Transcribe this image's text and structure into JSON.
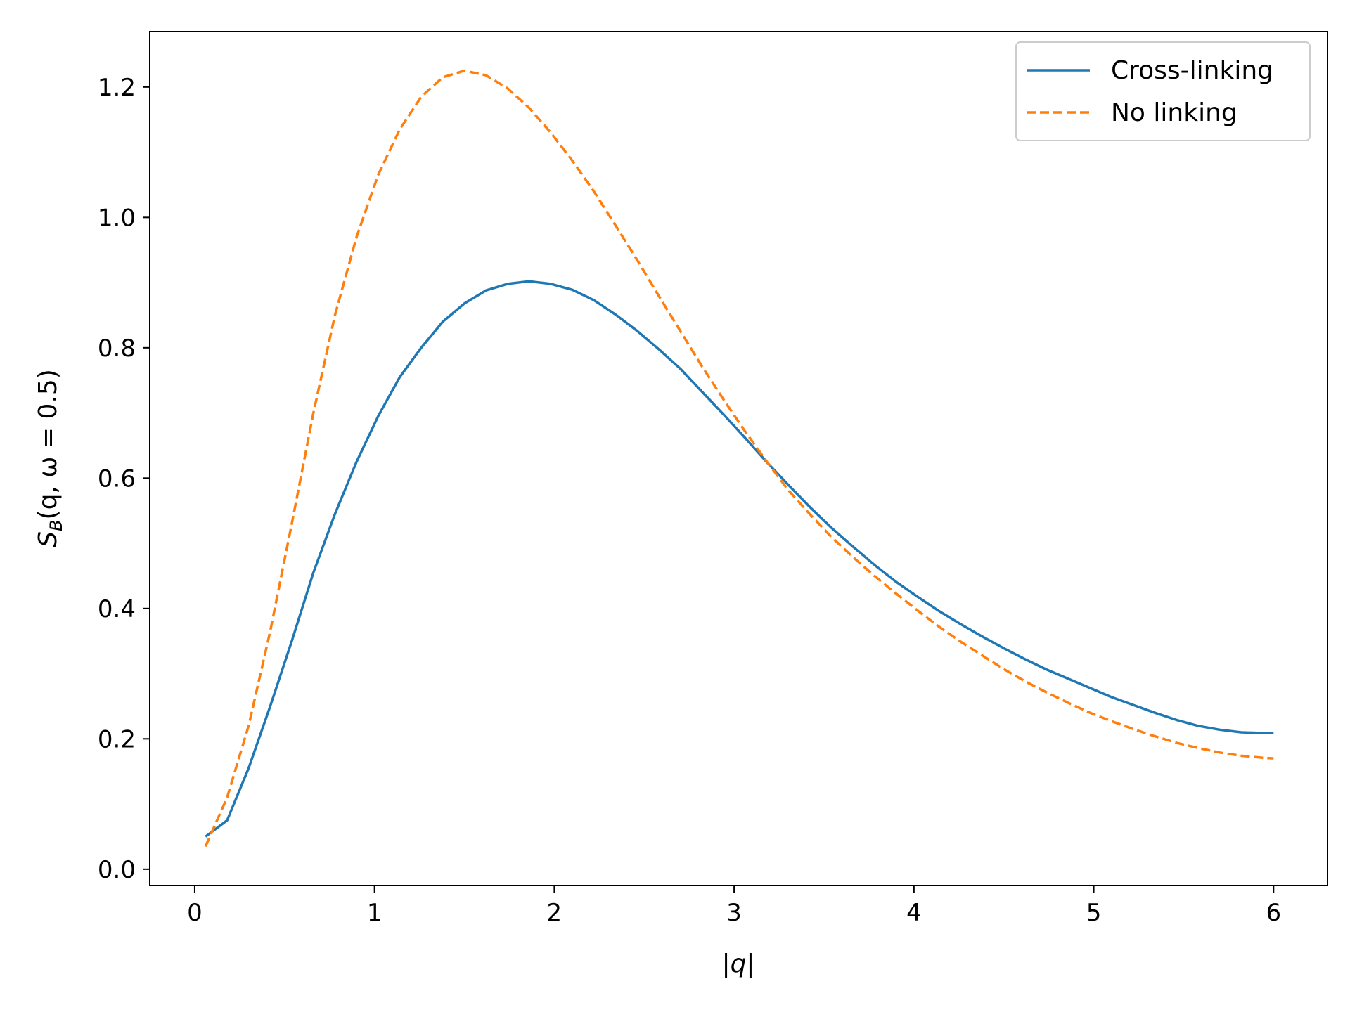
{
  "chart_data": {
    "type": "line",
    "title": "",
    "xlabel": "|q|",
    "ylabel_parts": {
      "main": "S",
      "sub": "B",
      "rest": "(q, ω = 0.5)"
    },
    "xlim": [
      -0.25,
      6.3
    ],
    "ylim": [
      -0.025,
      1.285
    ],
    "xticks": [
      0,
      1,
      2,
      3,
      4,
      5,
      6
    ],
    "xtick_labels": [
      "0",
      "1",
      "2",
      "3",
      "4",
      "5",
      "6"
    ],
    "yticks": [
      0.0,
      0.2,
      0.4,
      0.6,
      0.8,
      1.0,
      1.2
    ],
    "ytick_labels": [
      "0.0",
      "0.2",
      "0.4",
      "0.6",
      "0.8",
      "1.0",
      "1.2"
    ],
    "grid": false,
    "legend_position": "top-right",
    "series": [
      {
        "name": "Cross-linking",
        "color": "#1f77b4",
        "style": "solid",
        "x": [
          0.06,
          0.18,
          0.3,
          0.42,
          0.54,
          0.66,
          0.78,
          0.9,
          1.02,
          1.14,
          1.26,
          1.38,
          1.5,
          1.62,
          1.74,
          1.86,
          1.98,
          2.1,
          2.22,
          2.34,
          2.46,
          2.58,
          2.7,
          2.82,
          2.94,
          3.06,
          3.18,
          3.3,
          3.42,
          3.54,
          3.66,
          3.78,
          3.9,
          4.02,
          4.14,
          4.26,
          4.38,
          4.5,
          4.62,
          4.74,
          4.86,
          4.98,
          5.1,
          5.22,
          5.34,
          5.46,
          5.58,
          5.7,
          5.82,
          5.94,
          6.0
        ],
        "y": [
          0.05,
          0.075,
          0.155,
          0.25,
          0.35,
          0.455,
          0.545,
          0.625,
          0.695,
          0.755,
          0.8,
          0.84,
          0.868,
          0.888,
          0.898,
          0.902,
          0.898,
          0.889,
          0.873,
          0.851,
          0.826,
          0.798,
          0.768,
          0.733,
          0.698,
          0.662,
          0.625,
          0.59,
          0.556,
          0.524,
          0.495,
          0.467,
          0.441,
          0.418,
          0.396,
          0.376,
          0.357,
          0.339,
          0.322,
          0.306,
          0.292,
          0.278,
          0.264,
          0.252,
          0.24,
          0.229,
          0.22,
          0.214,
          0.21,
          0.209,
          0.209
        ]
      },
      {
        "name": "No linking",
        "color": "#ff7f0e",
        "style": "dashed",
        "x": [
          0.06,
          0.18,
          0.3,
          0.42,
          0.54,
          0.66,
          0.78,
          0.9,
          1.02,
          1.14,
          1.26,
          1.38,
          1.5,
          1.62,
          1.74,
          1.86,
          1.98,
          2.1,
          2.22,
          2.34,
          2.46,
          2.58,
          2.7,
          2.82,
          2.94,
          3.06,
          3.18,
          3.3,
          3.42,
          3.54,
          3.66,
          3.78,
          3.9,
          4.02,
          4.14,
          4.26,
          4.38,
          4.5,
          4.62,
          4.74,
          4.86,
          4.98,
          5.1,
          5.22,
          5.34,
          5.46,
          5.58,
          5.7,
          5.82,
          5.94,
          6.0
        ],
        "y": [
          0.035,
          0.11,
          0.22,
          0.365,
          0.53,
          0.7,
          0.85,
          0.97,
          1.065,
          1.135,
          1.185,
          1.215,
          1.225,
          1.218,
          1.198,
          1.168,
          1.13,
          1.087,
          1.04,
          0.988,
          0.935,
          0.88,
          0.826,
          0.772,
          0.721,
          0.672,
          0.626,
          0.582,
          0.545,
          0.51,
          0.479,
          0.45,
          0.423,
          0.397,
          0.372,
          0.349,
          0.328,
          0.307,
          0.288,
          0.271,
          0.255,
          0.24,
          0.227,
          0.215,
          0.204,
          0.194,
          0.186,
          0.179,
          0.174,
          0.171,
          0.17
        ]
      }
    ]
  }
}
